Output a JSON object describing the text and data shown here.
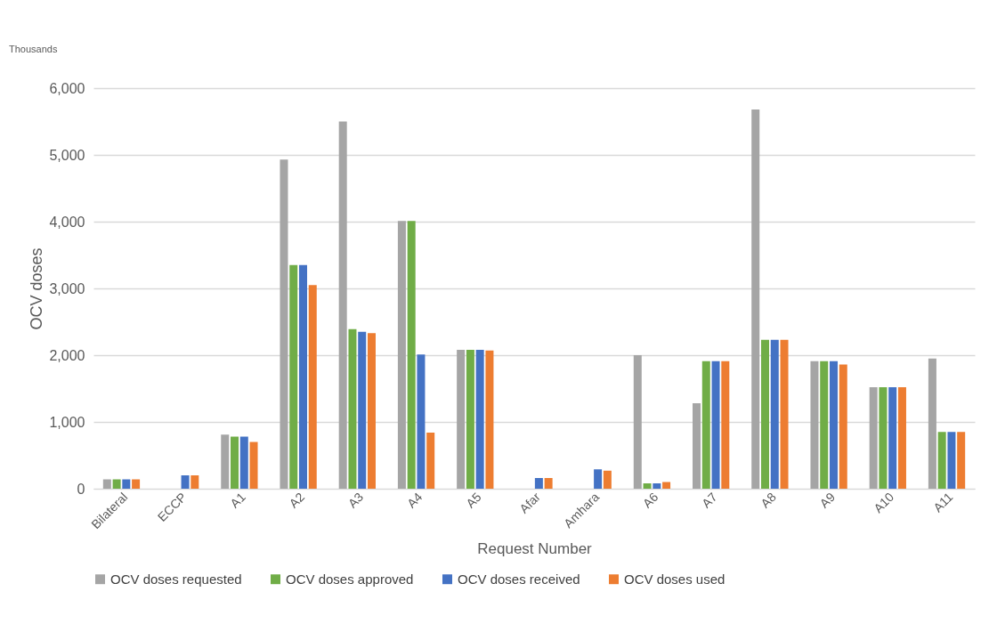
{
  "chart_data": {
    "type": "bar",
    "xlabel": "Request Number",
    "ylabel": "OCV doses",
    "annotations": [
      "Thousands"
    ],
    "categories": [
      "Bilateral",
      "ECCP",
      "A1",
      "A2",
      "A3",
      "A4",
      "A5",
      "Afar",
      "Amhara",
      "A6",
      "A7",
      "A8",
      "A9",
      "A10",
      "A11"
    ],
    "series": [
      {
        "name": "OCV doses requested",
        "color": "#a5a5a5",
        "values": [
          140,
          null,
          810,
          4930,
          5500,
          4010,
          2080,
          null,
          null,
          2000,
          1280,
          5680,
          1910,
          1520,
          1950
        ]
      },
      {
        "name": "OCV doses approved",
        "color": "#70ad47",
        "values": [
          140,
          null,
          780,
          3350,
          2390,
          4010,
          2080,
          null,
          null,
          80,
          1910,
          2230,
          1910,
          1520,
          850
        ]
      },
      {
        "name": "OCV doses received",
        "color": "#4472c4",
        "values": [
          140,
          200,
          780,
          3350,
          2350,
          2010,
          2080,
          160,
          290,
          80,
          1910,
          2230,
          1910,
          1520,
          850
        ]
      },
      {
        "name": "OCV doses used",
        "color": "#ed7d31",
        "values": [
          140,
          200,
          700,
          3050,
          2330,
          840,
          2070,
          160,
          270,
          100,
          1910,
          2230,
          1860,
          1520,
          850
        ]
      }
    ],
    "ylim": [
      0,
      6000
    ],
    "yticks": [
      {
        "value": 0,
        "label": "0"
      },
      {
        "value": 1000,
        "label": "1,000"
      },
      {
        "value": 2000,
        "label": "2,000"
      },
      {
        "value": 3000,
        "label": "3,000"
      },
      {
        "value": 4000,
        "label": "4,000"
      },
      {
        "value": 5000,
        "label": "5,000"
      },
      {
        "value": 6000,
        "label": "6,000"
      }
    ],
    "grid": "y",
    "legend": "bottom"
  }
}
